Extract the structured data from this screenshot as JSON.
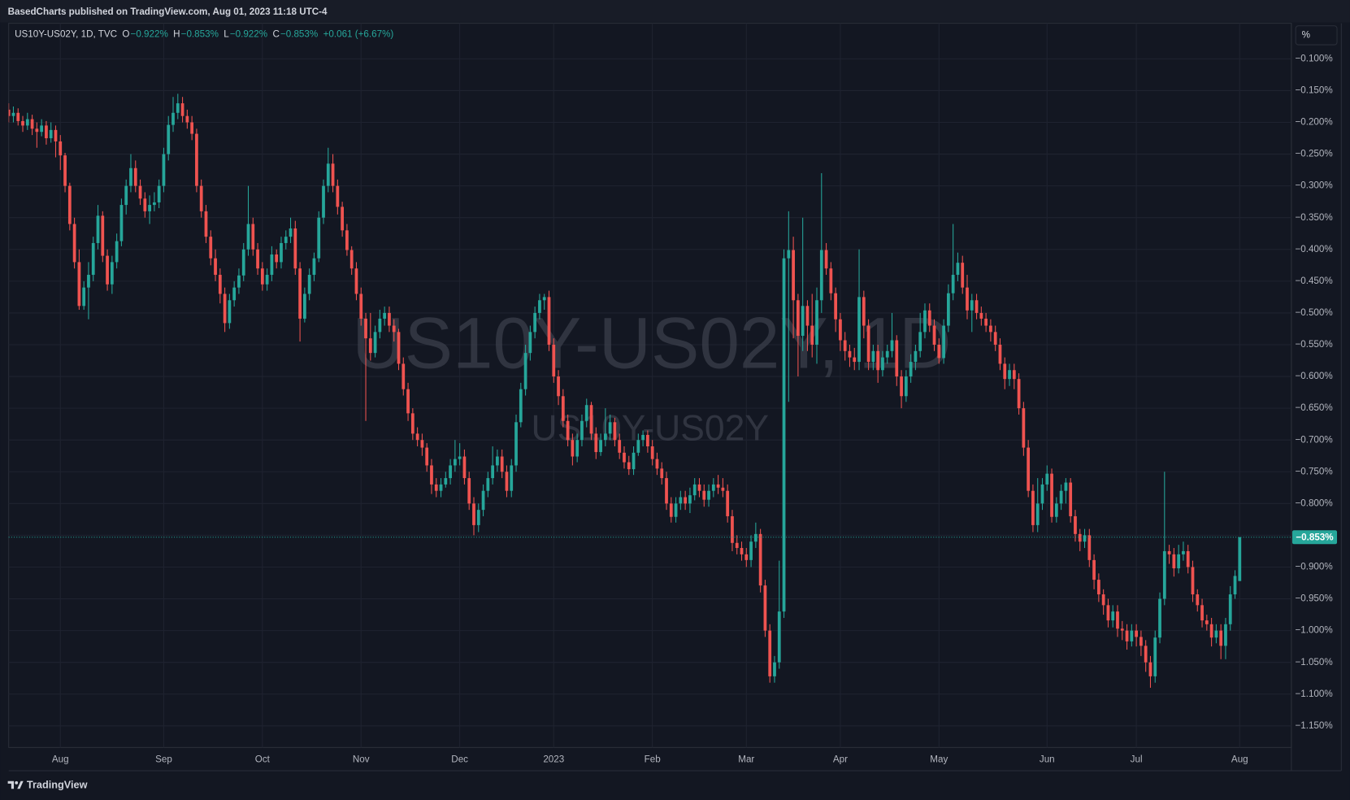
{
  "header": {
    "text": "BasedCharts published on TradingView.com, Aug 01, 2023 11:18 UTC-4"
  },
  "footer": {
    "brand": "TradingView"
  },
  "chart_data": {
    "type": "candlestick",
    "watermark": [
      "US10Y-US02Y, 1D",
      "US10Y-US02Y"
    ],
    "unit_button": "%",
    "legend": {
      "symbol": "US10Y-US02Y, 1D, TVC",
      "fields": [
        {
          "key": "O",
          "value": "−0.922%"
        },
        {
          "key": "H",
          "value": "−0.853%"
        },
        {
          "key": "L",
          "value": "−0.922%"
        },
        {
          "key": "C",
          "value": "−0.853%"
        }
      ],
      "change": "+0.061 (+6.67%)"
    },
    "up_color": "#26a69a",
    "down_color": "#ef5350",
    "grid": true,
    "xlim": [
      0,
      273
    ],
    "xticks": [
      {
        "value": 11,
        "label": "Aug"
      },
      {
        "value": 33,
        "label": "Sep"
      },
      {
        "value": 54,
        "label": "Oct"
      },
      {
        "value": 75,
        "label": "Nov"
      },
      {
        "value": 96,
        "label": "Dec"
      },
      {
        "value": 116,
        "label": "2023"
      },
      {
        "value": 137,
        "label": "Feb"
      },
      {
        "value": 157,
        "label": "Mar"
      },
      {
        "value": 177,
        "label": "Apr"
      },
      {
        "value": 198,
        "label": "May"
      },
      {
        "value": 221,
        "label": "Jun"
      },
      {
        "value": 240,
        "label": "Jul"
      },
      {
        "value": 262,
        "label": "Aug"
      }
    ],
    "ylim": [
      -1.184,
      -0.044
    ],
    "yticks": [
      {
        "value": -0.1,
        "label": "−0.100%"
      },
      {
        "value": -0.15,
        "label": "−0.150%"
      },
      {
        "value": -0.2,
        "label": "−0.200%"
      },
      {
        "value": -0.25,
        "label": "−0.250%"
      },
      {
        "value": -0.3,
        "label": "−0.300%"
      },
      {
        "value": -0.35,
        "label": "−0.350%"
      },
      {
        "value": -0.4,
        "label": "−0.400%"
      },
      {
        "value": -0.45,
        "label": "−0.450%"
      },
      {
        "value": -0.5,
        "label": "−0.500%"
      },
      {
        "value": -0.55,
        "label": "−0.550%"
      },
      {
        "value": -0.6,
        "label": "−0.600%"
      },
      {
        "value": -0.65,
        "label": "−0.650%"
      },
      {
        "value": -0.7,
        "label": "−0.700%"
      },
      {
        "value": -0.75,
        "label": "−0.750%"
      },
      {
        "value": -0.8,
        "label": "−0.800%"
      },
      {
        "value": -0.85,
        "label": "−0.850%"
      },
      {
        "value": -0.9,
        "label": "−0.900%"
      },
      {
        "value": -0.95,
        "label": "−0.950%"
      },
      {
        "value": -1.0,
        "label": "−1.000%"
      },
      {
        "value": -1.05,
        "label": "−1.050%"
      },
      {
        "value": -1.1,
        "label": "−1.100%"
      },
      {
        "value": -1.15,
        "label": "−1.150%"
      }
    ],
    "last_price": {
      "value": -0.853,
      "label": "−0.853%"
    },
    "open": [
      -0.18,
      -0.19,
      -0.185,
      -0.198,
      -0.205,
      -0.195,
      -0.21,
      -0.215,
      -0.205,
      -0.225,
      -0.212,
      -0.23,
      -0.252,
      -0.3,
      -0.36,
      -0.42,
      -0.489,
      -0.46,
      -0.44,
      -0.39,
      -0.347,
      -0.41,
      -0.455,
      -0.42,
      -0.387,
      -0.33,
      -0.3,
      -0.272,
      -0.3,
      -0.32,
      -0.34,
      -0.33,
      -0.326,
      -0.3,
      -0.25,
      -0.204,
      -0.185,
      -0.17,
      -0.19,
      -0.2,
      -0.218,
      -0.3,
      -0.34,
      -0.38,
      -0.414,
      -0.44,
      -0.47,
      -0.516,
      -0.48,
      -0.46,
      -0.441,
      -0.4,
      -0.36,
      -0.4,
      -0.43,
      -0.455,
      -0.44,
      -0.408,
      -0.42,
      -0.39,
      -0.38,
      -0.367,
      -0.43,
      -0.509,
      -0.47,
      -0.44,
      -0.414,
      -0.35,
      -0.3,
      -0.265,
      -0.3,
      -0.333,
      -0.37,
      -0.401,
      -0.43,
      -0.47,
      -0.509,
      -0.54,
      -0.563,
      -0.53,
      -0.509,
      -0.5,
      -0.52,
      -0.53,
      -0.58,
      -0.62,
      -0.658,
      -0.69,
      -0.7,
      -0.712,
      -0.74,
      -0.77,
      -0.78,
      -0.77,
      -0.76,
      -0.74,
      -0.73,
      -0.726,
      -0.76,
      -0.8,
      -0.834,
      -0.81,
      -0.78,
      -0.76,
      -0.74,
      -0.726,
      -0.75,
      -0.78,
      -0.74,
      -0.672,
      -0.62,
      -0.563,
      -0.53,
      -0.5,
      -0.48,
      -0.475,
      -0.55,
      -0.6,
      -0.631,
      -0.67,
      -0.7,
      -0.726,
      -0.7,
      -0.67,
      -0.645,
      -0.69,
      -0.719,
      -0.7,
      -0.69,
      -0.672,
      -0.7,
      -0.72,
      -0.735,
      -0.746,
      -0.72,
      -0.7,
      -0.692,
      -0.71,
      -0.73,
      -0.745,
      -0.76,
      -0.8,
      -0.821,
      -0.8,
      -0.79,
      -0.8,
      -0.787,
      -0.77,
      -0.78,
      -0.794,
      -0.78,
      -0.77,
      -0.775,
      -0.78,
      -0.82,
      -0.862,
      -0.87,
      -0.88,
      -0.889,
      -0.86,
      -0.848,
      -0.929,
      -1.0,
      -1.072,
      -1.05,
      -0.97,
      -0.414,
      -0.401,
      -0.48,
      -0.536,
      -0.489,
      -0.52,
      -0.55,
      -0.48,
      -0.401,
      -0.43,
      -0.469,
      -0.51,
      -0.543,
      -0.56,
      -0.57,
      -0.577,
      -0.475,
      -0.52,
      -0.577,
      -0.56,
      -0.59,
      -0.57,
      -0.56,
      -0.543,
      -0.6,
      -0.631,
      -0.6,
      -0.577,
      -0.56,
      -0.53,
      -0.496,
      -0.52,
      -0.55,
      -0.571,
      -0.52,
      -0.469,
      -0.44,
      -0.421,
      -0.46,
      -0.496,
      -0.48,
      -0.5,
      -0.509,
      -0.52,
      -0.53,
      -0.55,
      -0.58,
      -0.604,
      -0.59,
      -0.604,
      -0.65,
      -0.712,
      -0.78,
      -0.834,
      -0.8,
      -0.77,
      -0.753,
      -0.821,
      -0.8,
      -0.78,
      -0.767,
      -0.82,
      -0.848,
      -0.86,
      -0.85,
      -0.889,
      -0.92,
      -0.943,
      -0.96,
      -0.984,
      -0.97,
      -0.997,
      -1.0,
      -1.017,
      -1.0,
      -1.01,
      -1.024,
      -1.05,
      -1.072,
      -1.011,
      -0.95,
      -0.875,
      -0.88,
      -0.902,
      -0.88,
      -0.875,
      -0.9,
      -0.943,
      -0.96,
      -0.984,
      -0.99,
      -1.011,
      -1.0,
      -1.024,
      -0.99,
      -0.943,
      -0.922
    ],
    "high": [
      -0.17,
      -0.175,
      -0.178,
      -0.19,
      -0.185,
      -0.188,
      -0.2,
      -0.195,
      -0.198,
      -0.2,
      -0.205,
      -0.22,
      -0.248,
      -0.295,
      -0.35,
      -0.4,
      -0.45,
      -0.42,
      -0.38,
      -0.33,
      -0.34,
      -0.4,
      -0.41,
      -0.375,
      -0.32,
      -0.29,
      -0.25,
      -0.26,
      -0.29,
      -0.31,
      -0.315,
      -0.31,
      -0.29,
      -0.24,
      -0.19,
      -0.16,
      -0.155,
      -0.16,
      -0.18,
      -0.19,
      -0.21,
      -0.29,
      -0.33,
      -0.37,
      -0.4,
      -0.43,
      -0.46,
      -0.47,
      -0.45,
      -0.43,
      -0.39,
      -0.3,
      -0.35,
      -0.39,
      -0.42,
      -0.43,
      -0.395,
      -0.4,
      -0.38,
      -0.37,
      -0.35,
      -0.355,
      -0.42,
      -0.46,
      -0.43,
      -0.405,
      -0.34,
      -0.29,
      -0.24,
      -0.25,
      -0.29,
      -0.325,
      -0.36,
      -0.395,
      -0.42,
      -0.46,
      -0.5,
      -0.5,
      -0.52,
      -0.495,
      -0.49,
      -0.49,
      -0.51,
      -0.525,
      -0.57,
      -0.61,
      -0.65,
      -0.68,
      -0.69,
      -0.705,
      -0.73,
      -0.76,
      -0.76,
      -0.75,
      -0.73,
      -0.7,
      -0.705,
      -0.715,
      -0.75,
      -0.79,
      -0.8,
      -0.77,
      -0.75,
      -0.71,
      -0.715,
      -0.715,
      -0.74,
      -0.73,
      -0.66,
      -0.61,
      -0.55,
      -0.52,
      -0.49,
      -0.47,
      -0.47,
      -0.465,
      -0.54,
      -0.59,
      -0.62,
      -0.66,
      -0.69,
      -0.69,
      -0.66,
      -0.635,
      -0.64,
      -0.68,
      -0.69,
      -0.65,
      -0.66,
      -0.665,
      -0.69,
      -0.71,
      -0.725,
      -0.71,
      -0.69,
      -0.685,
      -0.685,
      -0.7,
      -0.72,
      -0.735,
      -0.75,
      -0.79,
      -0.79,
      -0.78,
      -0.78,
      -0.775,
      -0.76,
      -0.76,
      -0.77,
      -0.77,
      -0.76,
      -0.755,
      -0.76,
      -0.77,
      -0.81,
      -0.85,
      -0.86,
      -0.87,
      -0.85,
      -0.83,
      -0.84,
      -0.92,
      -0.99,
      -1.04,
      -0.89,
      -0.4,
      -0.34,
      -0.38,
      -0.47,
      -0.35,
      -0.48,
      -0.47,
      -0.46,
      -0.28,
      -0.39,
      -0.42,
      -0.46,
      -0.5,
      -0.53,
      -0.55,
      -0.555,
      -0.4,
      -0.465,
      -0.51,
      -0.55,
      -0.55,
      -0.56,
      -0.55,
      -0.5,
      -0.535,
      -0.59,
      -0.59,
      -0.565,
      -0.55,
      -0.5,
      -0.485,
      -0.485,
      -0.51,
      -0.54,
      -0.51,
      -0.455,
      -0.36,
      -0.405,
      -0.41,
      -0.44,
      -0.47,
      -0.47,
      -0.49,
      -0.5,
      -0.51,
      -0.52,
      -0.54,
      -0.57,
      -0.58,
      -0.58,
      -0.595,
      -0.64,
      -0.7,
      -0.77,
      -0.76,
      -0.76,
      -0.74,
      -0.745,
      -0.79,
      -0.77,
      -0.76,
      -0.76,
      -0.81,
      -0.84,
      -0.84,
      -0.84,
      -0.88,
      -0.91,
      -0.935,
      -0.95,
      -0.96,
      -0.96,
      -0.985,
      -0.99,
      -0.99,
      -0.99,
      -1.0,
      -1.015,
      -1.04,
      -1.0,
      -0.94,
      -0.75,
      -0.865,
      -0.87,
      -0.865,
      -0.86,
      -0.865,
      -0.89,
      -0.935,
      -0.95,
      -0.975,
      -0.98,
      -0.99,
      -0.99,
      -0.98,
      -0.93,
      -0.905,
      -0.853
    ],
    "low": [
      -0.2,
      -0.2,
      -0.205,
      -0.215,
      -0.212,
      -0.22,
      -0.24,
      -0.222,
      -0.235,
      -0.232,
      -0.255,
      -0.275,
      -0.31,
      -0.37,
      -0.43,
      -0.495,
      -0.495,
      -0.51,
      -0.45,
      -0.4,
      -0.42,
      -0.465,
      -0.47,
      -0.43,
      -0.395,
      -0.345,
      -0.31,
      -0.31,
      -0.33,
      -0.35,
      -0.36,
      -0.34,
      -0.335,
      -0.31,
      -0.26,
      -0.215,
      -0.195,
      -0.2,
      -0.21,
      -0.228,
      -0.31,
      -0.35,
      -0.39,
      -0.425,
      -0.45,
      -0.485,
      -0.53,
      -0.525,
      -0.49,
      -0.47,
      -0.45,
      -0.41,
      -0.41,
      -0.44,
      -0.465,
      -0.465,
      -0.45,
      -0.43,
      -0.43,
      -0.4,
      -0.39,
      -0.44,
      -0.545,
      -0.515,
      -0.48,
      -0.45,
      -0.42,
      -0.36,
      -0.31,
      -0.31,
      -0.345,
      -0.38,
      -0.41,
      -0.44,
      -0.48,
      -0.52,
      -0.67,
      -0.575,
      -0.57,
      -0.54,
      -0.52,
      -0.53,
      -0.545,
      -0.59,
      -0.63,
      -0.67,
      -0.7,
      -0.71,
      -0.725,
      -0.75,
      -0.785,
      -0.79,
      -0.79,
      -0.775,
      -0.77,
      -0.75,
      -0.74,
      -0.77,
      -0.81,
      -0.85,
      -0.845,
      -0.82,
      -0.79,
      -0.77,
      -0.75,
      -0.76,
      -0.79,
      -0.79,
      -0.75,
      -0.68,
      -0.63,
      -0.575,
      -0.54,
      -0.51,
      -0.495,
      -0.56,
      -0.61,
      -0.645,
      -0.68,
      -0.71,
      -0.74,
      -0.735,
      -0.71,
      -0.68,
      -0.7,
      -0.73,
      -0.725,
      -0.71,
      -0.7,
      -0.71,
      -0.73,
      -0.745,
      -0.755,
      -0.755,
      -0.725,
      -0.71,
      -0.72,
      -0.74,
      -0.755,
      -0.77,
      -0.81,
      -0.83,
      -0.83,
      -0.81,
      -0.81,
      -0.815,
      -0.795,
      -0.79,
      -0.805,
      -0.805,
      -0.79,
      -0.785,
      -0.79,
      -0.83,
      -0.875,
      -0.88,
      -0.89,
      -0.9,
      -0.9,
      -0.87,
      -0.94,
      -1.01,
      -1.082,
      -1.082,
      -1.06,
      -0.98,
      -0.64,
      -0.54,
      -0.6,
      -0.56,
      -0.56,
      -0.57,
      -0.58,
      -0.5,
      -0.44,
      -0.48,
      -0.53,
      -0.56,
      -0.575,
      -0.585,
      -0.59,
      -0.59,
      -0.54,
      -0.59,
      -0.59,
      -0.61,
      -0.6,
      -0.58,
      -0.57,
      -0.615,
      -0.65,
      -0.64,
      -0.61,
      -0.59,
      -0.57,
      -0.54,
      -0.53,
      -0.56,
      -0.58,
      -0.58,
      -0.53,
      -0.48,
      -0.45,
      -0.47,
      -0.51,
      -0.53,
      -0.51,
      -0.52,
      -0.53,
      -0.545,
      -0.56,
      -0.59,
      -0.62,
      -0.615,
      -0.62,
      -0.66,
      -0.725,
      -0.79,
      -0.845,
      -0.845,
      -0.81,
      -0.78,
      -0.83,
      -0.83,
      -0.81,
      -0.8,
      -0.83,
      -0.86,
      -0.875,
      -0.87,
      -0.9,
      -0.935,
      -0.955,
      -0.975,
      -0.995,
      -0.995,
      -1.01,
      -1.015,
      -1.03,
      -1.025,
      -1.025,
      -1.04,
      -1.065,
      -1.09,
      -1.082,
      -1.02,
      -0.96,
      -0.895,
      -0.915,
      -0.91,
      -0.89,
      -0.91,
      -0.955,
      -0.97,
      -0.995,
      -1.0,
      -1.025,
      -1.02,
      -1.045,
      -1.045,
      -1.0,
      -0.95,
      -0.922
    ],
    "close": [
      -0.19,
      -0.185,
      -0.198,
      -0.205,
      -0.195,
      -0.21,
      -0.215,
      -0.205,
      -0.225,
      -0.212,
      -0.23,
      -0.252,
      -0.3,
      -0.36,
      -0.42,
      -0.489,
      -0.46,
      -0.44,
      -0.39,
      -0.347,
      -0.41,
      -0.455,
      -0.42,
      -0.387,
      -0.33,
      -0.3,
      -0.272,
      -0.3,
      -0.32,
      -0.34,
      -0.33,
      -0.326,
      -0.3,
      -0.25,
      -0.204,
      -0.185,
      -0.17,
      -0.19,
      -0.2,
      -0.218,
      -0.3,
      -0.34,
      -0.38,
      -0.414,
      -0.44,
      -0.47,
      -0.516,
      -0.48,
      -0.46,
      -0.441,
      -0.4,
      -0.36,
      -0.4,
      -0.43,
      -0.455,
      -0.44,
      -0.408,
      -0.42,
      -0.39,
      -0.38,
      -0.367,
      -0.43,
      -0.509,
      -0.47,
      -0.44,
      -0.414,
      -0.35,
      -0.3,
      -0.265,
      -0.3,
      -0.333,
      -0.37,
      -0.401,
      -0.43,
      -0.47,
      -0.509,
      -0.54,
      -0.563,
      -0.53,
      -0.509,
      -0.5,
      -0.52,
      -0.53,
      -0.58,
      -0.62,
      -0.658,
      -0.69,
      -0.7,
      -0.712,
      -0.74,
      -0.77,
      -0.78,
      -0.77,
      -0.76,
      -0.74,
      -0.73,
      -0.726,
      -0.76,
      -0.8,
      -0.834,
      -0.81,
      -0.78,
      -0.76,
      -0.74,
      -0.726,
      -0.75,
      -0.78,
      -0.74,
      -0.672,
      -0.62,
      -0.563,
      -0.53,
      -0.5,
      -0.48,
      -0.475,
      -0.55,
      -0.6,
      -0.631,
      -0.67,
      -0.7,
      -0.726,
      -0.7,
      -0.67,
      -0.645,
      -0.69,
      -0.719,
      -0.7,
      -0.69,
      -0.672,
      -0.7,
      -0.72,
      -0.735,
      -0.746,
      -0.72,
      -0.7,
      -0.692,
      -0.71,
      -0.73,
      -0.745,
      -0.76,
      -0.8,
      -0.821,
      -0.8,
      -0.79,
      -0.8,
      -0.787,
      -0.77,
      -0.78,
      -0.794,
      -0.78,
      -0.77,
      -0.775,
      -0.78,
      -0.82,
      -0.862,
      -0.87,
      -0.88,
      -0.889,
      -0.86,
      -0.848,
      -0.929,
      -1.0,
      -1.072,
      -1.05,
      -0.97,
      -0.414,
      -0.401,
      -0.48,
      -0.536,
      -0.489,
      -0.52,
      -0.55,
      -0.48,
      -0.401,
      -0.43,
      -0.469,
      -0.51,
      -0.543,
      -0.56,
      -0.57,
      -0.577,
      -0.475,
      -0.52,
      -0.577,
      -0.56,
      -0.59,
      -0.57,
      -0.56,
      -0.543,
      -0.6,
      -0.631,
      -0.6,
      -0.577,
      -0.56,
      -0.53,
      -0.496,
      -0.52,
      -0.55,
      -0.571,
      -0.52,
      -0.469,
      -0.44,
      -0.421,
      -0.46,
      -0.496,
      -0.48,
      -0.5,
      -0.509,
      -0.52,
      -0.53,
      -0.55,
      -0.58,
      -0.604,
      -0.59,
      -0.604,
      -0.65,
      -0.712,
      -0.78,
      -0.834,
      -0.8,
      -0.77,
      -0.753,
      -0.821,
      -0.8,
      -0.78,
      -0.767,
      -0.82,
      -0.848,
      -0.86,
      -0.85,
      -0.889,
      -0.92,
      -0.943,
      -0.96,
      -0.984,
      -0.97,
      -0.997,
      -1.0,
      -1.017,
      -1.0,
      -1.01,
      -1.024,
      -1.05,
      -1.072,
      -1.011,
      -0.95,
      -0.875,
      -0.88,
      -0.902,
      -0.88,
      -0.875,
      -0.9,
      -0.943,
      -0.96,
      -0.984,
      -0.99,
      -1.011,
      -1.0,
      -1.024,
      -0.99,
      -0.943,
      -0.914,
      -0.853
    ]
  }
}
